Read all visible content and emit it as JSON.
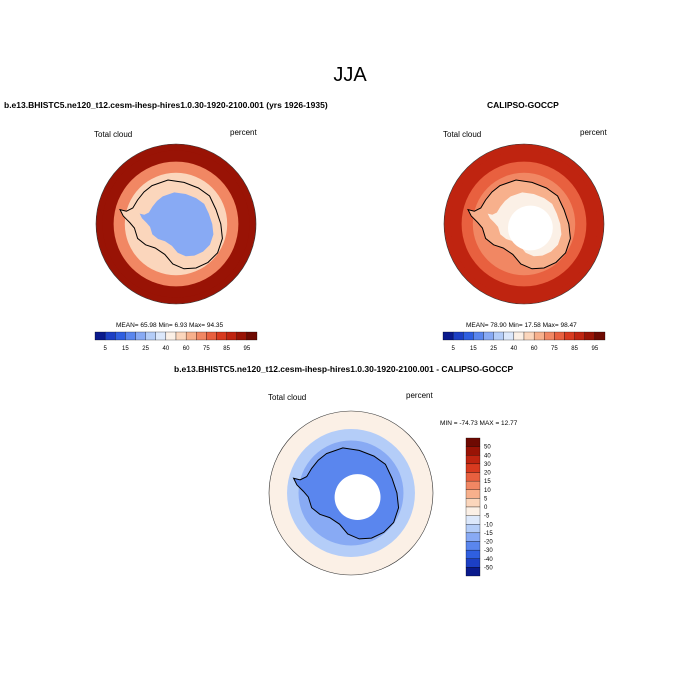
{
  "main_title": "JJA",
  "panels": [
    {
      "title": "b.e13.BHISTC5.ne120_t12.cesm-ihesp-hires1.0.30-1920-2100.001 (yrs 1926-1935)",
      "left_label": "Total cloud",
      "right_label": "percent",
      "stats_text": "MEAN=  65.98  Min=   6.93  Max=  94.35"
    },
    {
      "title": "CALIPSO-GOCCP",
      "left_label": "Total cloud",
      "right_label": "percent",
      "stats_text": "MEAN=  78.90  Min=   17.58  Max=  98.47"
    },
    {
      "title": "b.e13.BHISTC5.ne120_t12.cesm-ihesp-hires1.0.30-1920-2100.001 - CALIPSO-GOCCP",
      "left_label": "Total cloud",
      "right_label": "percent",
      "stats_text": "MIN = -74.73 MAX =  12.77"
    }
  ],
  "chart_data": [
    {
      "type": "heatmap",
      "projection": "polar-stereographic-south",
      "field": "total cloud",
      "units": "percent",
      "stats": {
        "mean": 65.98,
        "min": 6.93,
        "max": 94.35
      },
      "colorbar": {
        "orientation": "horizontal",
        "levels": [
          5,
          10,
          15,
          20,
          25,
          30,
          40,
          50,
          60,
          70,
          75,
          80,
          85,
          90,
          95
        ],
        "tick_labels": [
          "5",
          "15",
          "25",
          "40",
          "60",
          "75",
          "85",
          "95"
        ],
        "colors": [
          "#0a1a8c",
          "#1c3fc4",
          "#2f5fe0",
          "#5a86ee",
          "#88aaf4",
          "#b4cdf8",
          "#dce8fb",
          "#fbf0e6",
          "#fbd6bc",
          "#f7b08c",
          "#f18763",
          "#e8603f",
          "#d83a1f",
          "#bf2410",
          "#991305",
          "#6e0a02"
        ]
      },
      "pattern": {
        "antarctic_interior": 20,
        "coast": 55,
        "southern_ocean": 90
      }
    },
    {
      "type": "heatmap",
      "projection": "polar-stereographic-south",
      "field": "total cloud",
      "units": "percent",
      "stats": {
        "mean": 78.9,
        "min": 17.58,
        "max": 98.47
      },
      "colorbar": {
        "orientation": "horizontal",
        "levels": [
          5,
          10,
          15,
          20,
          25,
          30,
          40,
          50,
          60,
          70,
          75,
          80,
          85,
          90,
          95
        ],
        "tick_labels": [
          "5",
          "15",
          "25",
          "40",
          "60",
          "75",
          "85",
          "95"
        ],
        "colors": [
          "#0a1a8c",
          "#1c3fc4",
          "#2f5fe0",
          "#5a86ee",
          "#88aaf4",
          "#b4cdf8",
          "#dce8fb",
          "#fbf0e6",
          "#fbd6bc",
          "#f7b08c",
          "#f18763",
          "#e8603f",
          "#d83a1f",
          "#bf2410",
          "#991305",
          "#6e0a02"
        ]
      },
      "pattern": {
        "polar_gap": true,
        "antarctic_interior": 45,
        "coast": 70,
        "southern_ocean": 85
      }
    },
    {
      "type": "heatmap",
      "projection": "polar-stereographic-south",
      "field": "total cloud difference",
      "units": "percent",
      "stats": {
        "min": -74.73,
        "max": 12.77
      },
      "colorbar": {
        "orientation": "vertical",
        "levels": [
          -50,
          -40,
          -30,
          -20,
          -15,
          -10,
          -5,
          0,
          5,
          10,
          15,
          20,
          30,
          40,
          50
        ],
        "tick_labels": [
          "50",
          "40",
          "30",
          "20",
          "15",
          "10",
          "5",
          "0",
          "-5",
          "-10",
          "-15",
          "-20",
          "-30",
          "-40",
          "-50"
        ],
        "colors": [
          "#0a1a8c",
          "#1c3fc4",
          "#2f5fe0",
          "#5a86ee",
          "#88aaf4",
          "#b4cdf8",
          "#dce8fb",
          "#fbf0e6",
          "#fbd6bc",
          "#f7b08c",
          "#f18763",
          "#e8603f",
          "#d83a1f",
          "#bf2410",
          "#991305",
          "#6e0a02"
        ]
      },
      "pattern": {
        "polar_gap": true,
        "antarctic_interior": -30,
        "coast": -20,
        "southern_ocean": -3
      }
    }
  ]
}
